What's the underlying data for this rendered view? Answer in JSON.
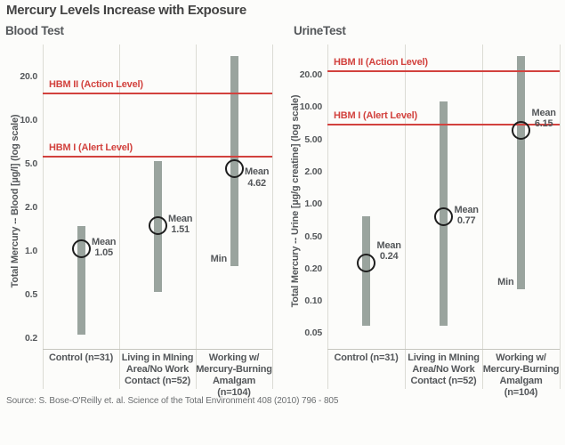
{
  "chart_data": {
    "type": "range-bar",
    "scale": "log",
    "title": "Mercury Levels Increase with Exposure",
    "source": "Source: S. Bose-O'Reilly et. al. Science of the Total Environment 408 (2010) 796 - 805",
    "colors": {
      "bar": "#9aa49e",
      "reference_line": "#d2423e",
      "text": "#54575a",
      "grid": "#dbdbd4",
      "axis": "#c6c6bf",
      "circle_stroke": "#1e1e1e",
      "background": "#fcfcfa"
    },
    "categories": [
      [
        "Control (n=31)"
      ],
      [
        "Living in MIning",
        "Area/No Work",
        "Contact (n=52)"
      ],
      [
        "Working w/",
        "Mercury-Burning",
        "Amalgam (n=104)"
      ]
    ],
    "panels": [
      {
        "title": "Blood Test",
        "ylabel": "Total Mercury -- Blood [µg/l] (log scale)",
        "yticks": [
          20.0,
          10.0,
          5.0,
          2.0,
          1.0,
          0.5,
          0.2
        ],
        "ytick_labels": [
          "20.0",
          "10.0",
          "5.0",
          "2.0",
          "1.0",
          "0.5",
          "0.2"
        ],
        "reference_lines": [
          {
            "label": "HBM II (Action Level)",
            "value": 15.5
          },
          {
            "label": "HBM I (Alert Level)",
            "value": 5.7
          }
        ],
        "groups": [
          {
            "category_index": 0,
            "min": 0.22,
            "max": 1.5,
            "mean": 1.05,
            "mean_label": "Mean",
            "mean_value_label": "1.05",
            "mean_label_pos": "center"
          },
          {
            "category_index": 1,
            "min": 0.53,
            "max": 5.3,
            "mean": 1.51,
            "mean_label": "Mean",
            "mean_value_label": "1.51",
            "mean_label_pos": "center"
          },
          {
            "category_index": 2,
            "min": 0.8,
            "max": 30,
            "mean": 4.62,
            "mean_label": "Mean",
            "mean_value_label": "4.62",
            "mean_label_pos": "below",
            "min_label": "Min",
            "max_capped": true
          }
        ]
      },
      {
        "title": "UrineTest",
        "ylabel": "Total Mercury -- Urine [µg/g creatine] (log scale)",
        "yticks": [
          20.0,
          10.0,
          5.0,
          2.0,
          1.0,
          0.5,
          0.2,
          0.1,
          0.05
        ],
        "ytick_labels": [
          "20.00",
          "10.00",
          "5.00",
          "2.00",
          "1.00",
          "0.50",
          "0.20",
          "0.10",
          "0.05"
        ],
        "reference_lines": [
          {
            "label": "HBM II (Action Level)",
            "value": 22
          },
          {
            "label": "HBM I (Alert Level)",
            "value": 7
          }
        ],
        "groups": [
          {
            "category_index": 0,
            "min": 0.06,
            "max": 0.78,
            "mean": 0.24,
            "mean_label": "Mean",
            "mean_value_label": "0.24",
            "mean_label_pos": "above"
          },
          {
            "category_index": 1,
            "min": 0.06,
            "max": 11.6,
            "mean": 0.77,
            "mean_label": "Mean",
            "mean_value_label": "0.77",
            "mean_label_pos": "center"
          },
          {
            "category_index": 2,
            "min": 0.13,
            "max": 35,
            "mean": 6.15,
            "mean_label": "Mean",
            "mean_value_label": "6.15",
            "mean_label_pos": "above",
            "min_label": "Min",
            "max_capped": true
          }
        ]
      }
    ]
  }
}
